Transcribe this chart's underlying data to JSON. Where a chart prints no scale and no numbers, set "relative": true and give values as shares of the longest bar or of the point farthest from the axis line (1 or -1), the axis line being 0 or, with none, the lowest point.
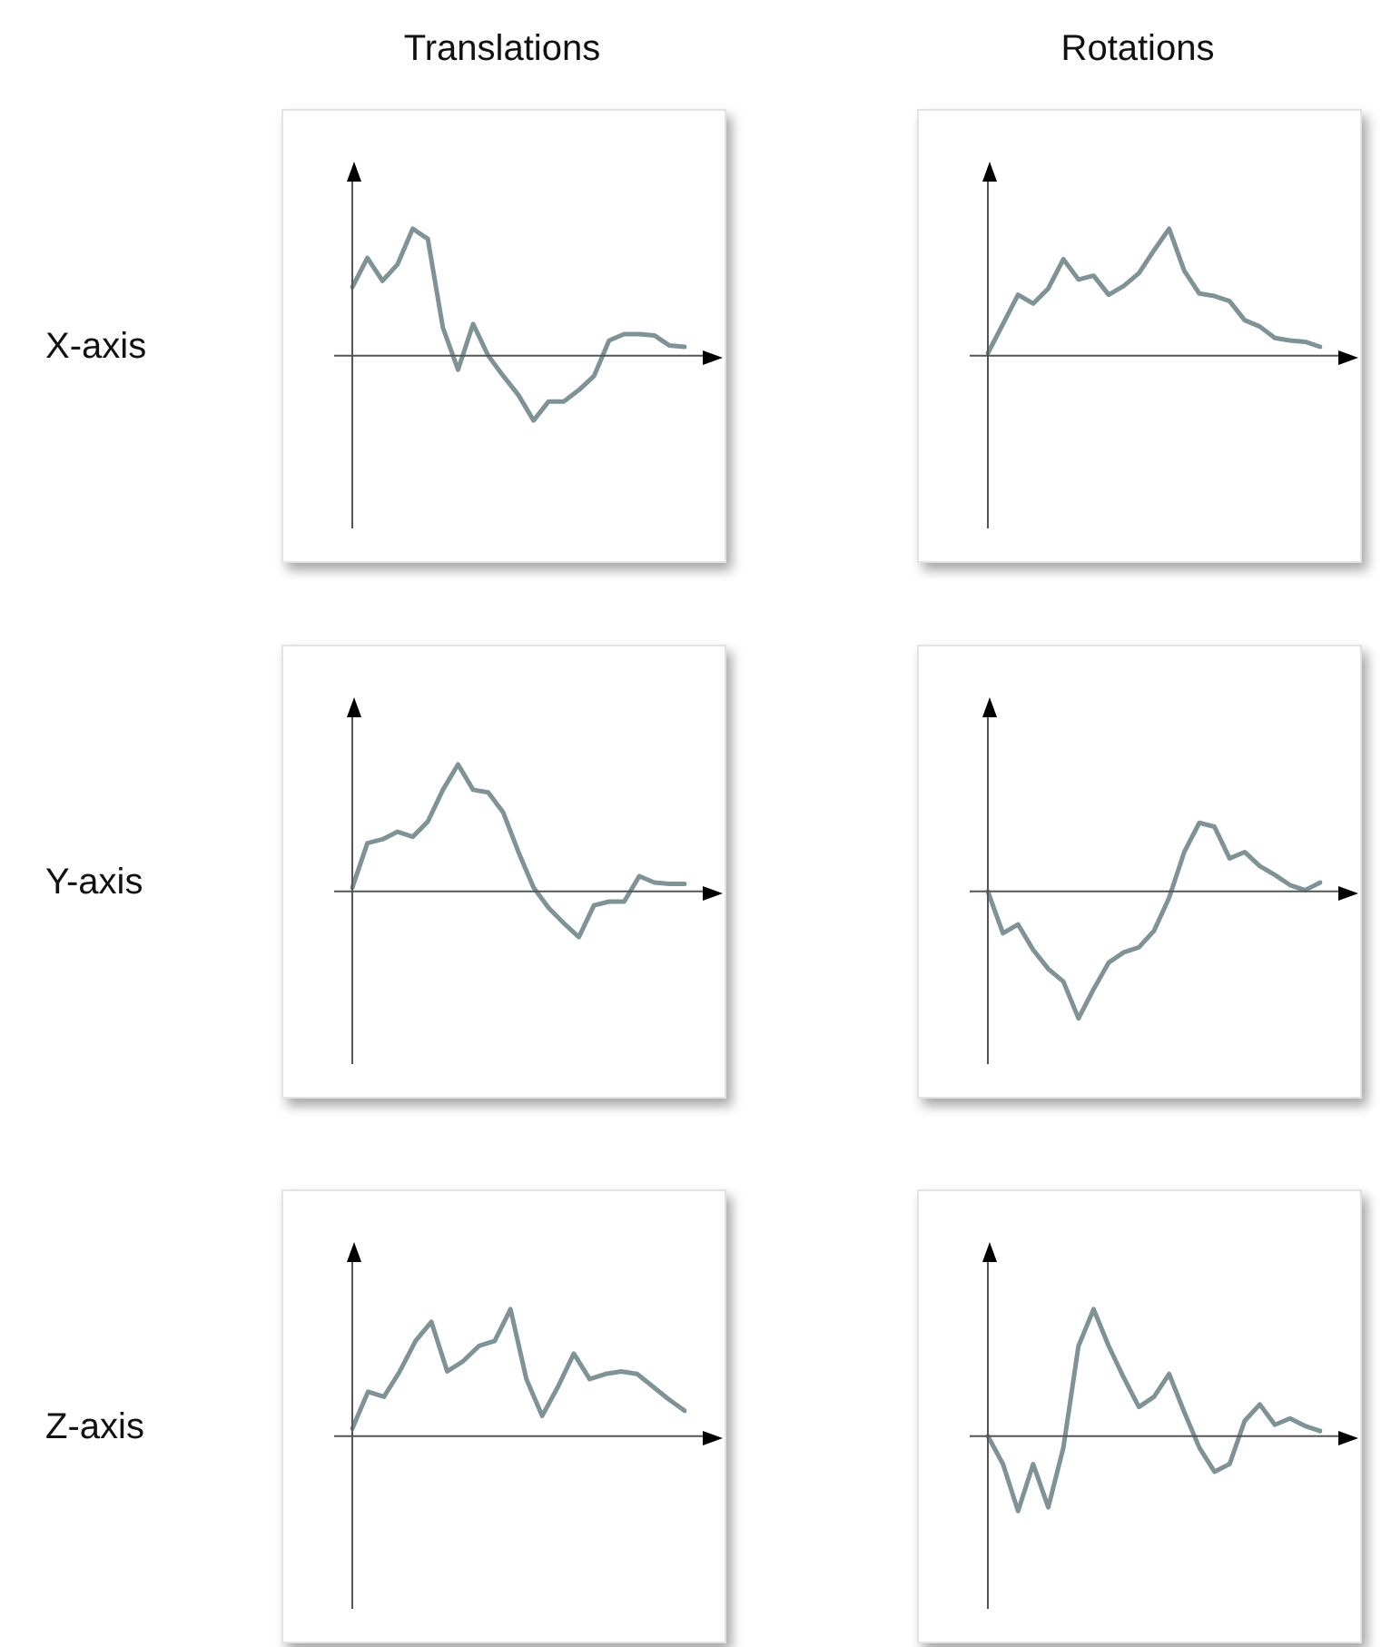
{
  "chart_data": [
    {
      "type": "line",
      "title": "Translations",
      "ylabel": "X-axis",
      "relative": true,
      "categories": [
        null,
        null,
        null,
        null,
        null,
        null,
        null,
        null,
        null,
        null,
        null,
        null,
        null,
        null,
        null,
        null,
        null,
        null,
        null,
        null,
        null,
        null,
        null
      ],
      "series": [
        {
          "color": "#7f9396",
          "values": [
            0.54,
            0.77,
            0.59,
            0.72,
            1.0,
            0.92,
            0.22,
            -0.11,
            0.25,
            0,
            -0.16,
            -0.31,
            -0.51,
            -0.36,
            -0.36,
            -0.27,
            -0.16,
            0.12,
            0.17,
            0.17,
            0.16,
            0.08,
            0.07
          ]
        }
      ]
    },
    {
      "type": "line",
      "title": "Rotations",
      "relative": true,
      "categories": [
        null,
        null,
        null,
        null,
        null,
        null,
        null,
        null,
        null,
        null,
        null,
        null,
        null,
        null,
        null,
        null,
        null,
        null,
        null,
        null,
        null,
        null,
        null
      ],
      "series": [
        {
          "color": "#7f9396",
          "values": [
            0.02,
            0.25,
            0.48,
            0.41,
            0.53,
            0.76,
            0.6,
            0.63,
            0.48,
            0.55,
            0.65,
            0.83,
            1.0,
            0.67,
            0.49,
            0.47,
            0.43,
            0.28,
            0.23,
            0.14,
            0.12,
            0.11,
            0.07
          ]
        }
      ]
    },
    {
      "type": "line",
      "ylabel": "Y-axis",
      "relative": true,
      "categories": [
        null,
        null,
        null,
        null,
        null,
        null,
        null,
        null,
        null,
        null,
        null,
        null,
        null,
        null,
        null,
        null,
        null,
        null,
        null,
        null,
        null,
        null,
        null
      ],
      "series": [
        {
          "color": "#7f9396",
          "values": [
            0.03,
            0.38,
            0.41,
            0.47,
            0.43,
            0.55,
            0.8,
            1.0,
            0.8,
            0.78,
            0.62,
            0.31,
            0.03,
            -0.13,
            -0.25,
            -0.36,
            -0.11,
            -0.08,
            -0.08,
            0.12,
            0.07,
            0.06,
            0.06
          ]
        }
      ]
    },
    {
      "type": "line",
      "relative": true,
      "categories": [
        null,
        null,
        null,
        null,
        null,
        null,
        null,
        null,
        null,
        null,
        null,
        null,
        null,
        null,
        null,
        null,
        null,
        null,
        null,
        null,
        null,
        null,
        null
      ],
      "series": [
        {
          "color": "#7f9396",
          "values": [
            0,
            -0.33,
            -0.26,
            -0.46,
            -0.61,
            -0.71,
            -1.0,
            -0.77,
            -0.56,
            -0.48,
            -0.44,
            -0.31,
            -0.05,
            0.31,
            0.54,
            0.51,
            0.26,
            0.31,
            0.2,
            0.13,
            0.05,
            0.01,
            0.07
          ]
        }
      ]
    },
    {
      "type": "line",
      "ylabel": "Z-axis",
      "relative": true,
      "categories": [
        null,
        null,
        null,
        null,
        null,
        null,
        null,
        null,
        null,
        null,
        null,
        null,
        null,
        null,
        null,
        null,
        null,
        null,
        null,
        null,
        null,
        null
      ],
      "series": [
        {
          "color": "#7f9396",
          "values": [
            0.06,
            0.35,
            0.31,
            0.51,
            0.75,
            0.9,
            0.51,
            0.59,
            0.71,
            0.75,
            1.0,
            0.45,
            0.16,
            0.39,
            0.65,
            0.45,
            0.49,
            0.51,
            0.49,
            0.39,
            0.29,
            0.2
          ]
        }
      ]
    },
    {
      "type": "line",
      "relative": true,
      "categories": [
        null,
        null,
        null,
        null,
        null,
        null,
        null,
        null,
        null,
        null,
        null,
        null,
        null,
        null,
        null,
        null,
        null,
        null,
        null,
        null,
        null,
        null,
        null
      ],
      "series": [
        {
          "color": "#7f9396",
          "values": [
            0,
            -0.22,
            -0.59,
            -0.22,
            -0.56,
            -0.09,
            0.71,
            1.0,
            0.71,
            0.46,
            0.23,
            0.31,
            0.49,
            0.19,
            -0.09,
            -0.28,
            -0.22,
            0.12,
            0.25,
            0.09,
            0.14,
            0.08,
            0.04
          ]
        }
      ]
    }
  ]
}
